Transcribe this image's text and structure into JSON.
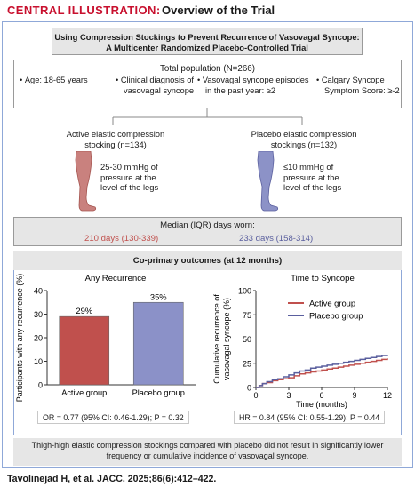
{
  "header": {
    "label": "CENTRAL ILLUSTRATION:",
    "title": "Overview of the Trial"
  },
  "study_title": [
    "Using Compression Stockings to Prevent Recurrence of Vasovagal Syncope:",
    "A Multicenter Randomized Placebo-Controlled Trial"
  ],
  "population": {
    "title": "Total population (N=266)",
    "criteria": [
      [
        "Age: 18-65 years"
      ],
      [
        "Clinical diagnosis of",
        "vasovagal syncope"
      ],
      [
        "Vasovagal syncope episodes",
        "in the past year: ≥2"
      ],
      [
        "Calgary Syncope",
        "Symptom Score: ≥-2"
      ]
    ]
  },
  "arms": {
    "active": {
      "title": [
        "Active elastic compression",
        "stocking (n=134)"
      ],
      "detail": [
        "25-30 mmHg of",
        "pressure at the",
        "level of the legs"
      ],
      "color": "#c0504d"
    },
    "placebo": {
      "title": [
        "Placebo elastic compression",
        "stockings (n=132)"
      ],
      "detail": [
        "≤10 mmHg of",
        "pressure at the",
        "level of the legs"
      ],
      "color": "#5a5f9e"
    }
  },
  "median": {
    "title": "Median (IQR) days worn:",
    "active": "210 days (130-339)",
    "placebo": "233 days (158-314)"
  },
  "outcomes_title": "Co-primary outcomes (at 12 months)",
  "chart_data": [
    {
      "type": "bar",
      "title": "Any Recurrence",
      "ylabel": "Participants with any recurrence (%)",
      "categories": [
        "Active group",
        "Placebo group"
      ],
      "values": [
        29,
        35
      ],
      "data_labels": [
        "29%",
        "35%"
      ],
      "colors": [
        "#c0504d",
        "#8b91c8"
      ],
      "ylim": [
        0,
        40
      ],
      "yticks": [
        0,
        10,
        20,
        30,
        40
      ],
      "stat": "OR = 0.77 (95% CI: 0.46-1.29); P = 0.32"
    },
    {
      "type": "line",
      "title": "Time to Syncope",
      "xlabel": "Time (months)",
      "ylabel_lines": [
        "Cumulative recurrence of",
        "vasovagal syncope (%)"
      ],
      "xlim": [
        0,
        12
      ],
      "ylim": [
        0,
        100
      ],
      "xticks": [
        0,
        3,
        6,
        9,
        12
      ],
      "yticks": [
        0,
        25,
        50,
        75,
        100
      ],
      "legend_position": "top-right",
      "series": [
        {
          "name": "Active group",
          "color": "#c0504d",
          "x": [
            0,
            0.3,
            0.6,
            1,
            1.5,
            2,
            2.5,
            3,
            3.5,
            4,
            4.5,
            5,
            5.5,
            6,
            6.5,
            7,
            7.5,
            8,
            8.5,
            9,
            9.5,
            10,
            10.5,
            11,
            11.5,
            12
          ],
          "y": [
            0,
            2,
            4,
            5,
            7,
            8,
            9,
            10,
            12,
            14,
            15,
            16,
            17,
            18,
            19,
            20,
            21,
            22,
            23,
            24,
            25,
            26,
            27,
            28,
            29,
            30
          ]
        },
        {
          "name": "Placebo group",
          "color": "#5a5f9e",
          "x": [
            0,
            0.3,
            0.6,
            1,
            1.5,
            2,
            2.5,
            3,
            3.5,
            4,
            4.5,
            5,
            5.5,
            6,
            6.5,
            7,
            7.5,
            8,
            8.5,
            9,
            9.5,
            10,
            10.5,
            11,
            11.5,
            12
          ],
          "y": [
            0,
            2,
            4,
            6,
            8,
            9,
            11,
            13,
            15,
            17,
            18,
            20,
            21,
            22,
            23,
            24,
            25,
            26,
            27,
            28,
            29,
            30,
            31,
            32,
            33,
            34
          ]
        }
      ],
      "stat": "HR = 0.84 (95% CI: 0.55-1.29); P = 0.44"
    }
  ],
  "conclusion": [
    "Thigh-high elastic compression stockings compared with placebo did not result in significantly lower",
    "frequency or cumulative incidence of vasovagal syncope."
  ],
  "citation": "Tavolinejad H, et al. JACC. 2025;86(6):412–422."
}
